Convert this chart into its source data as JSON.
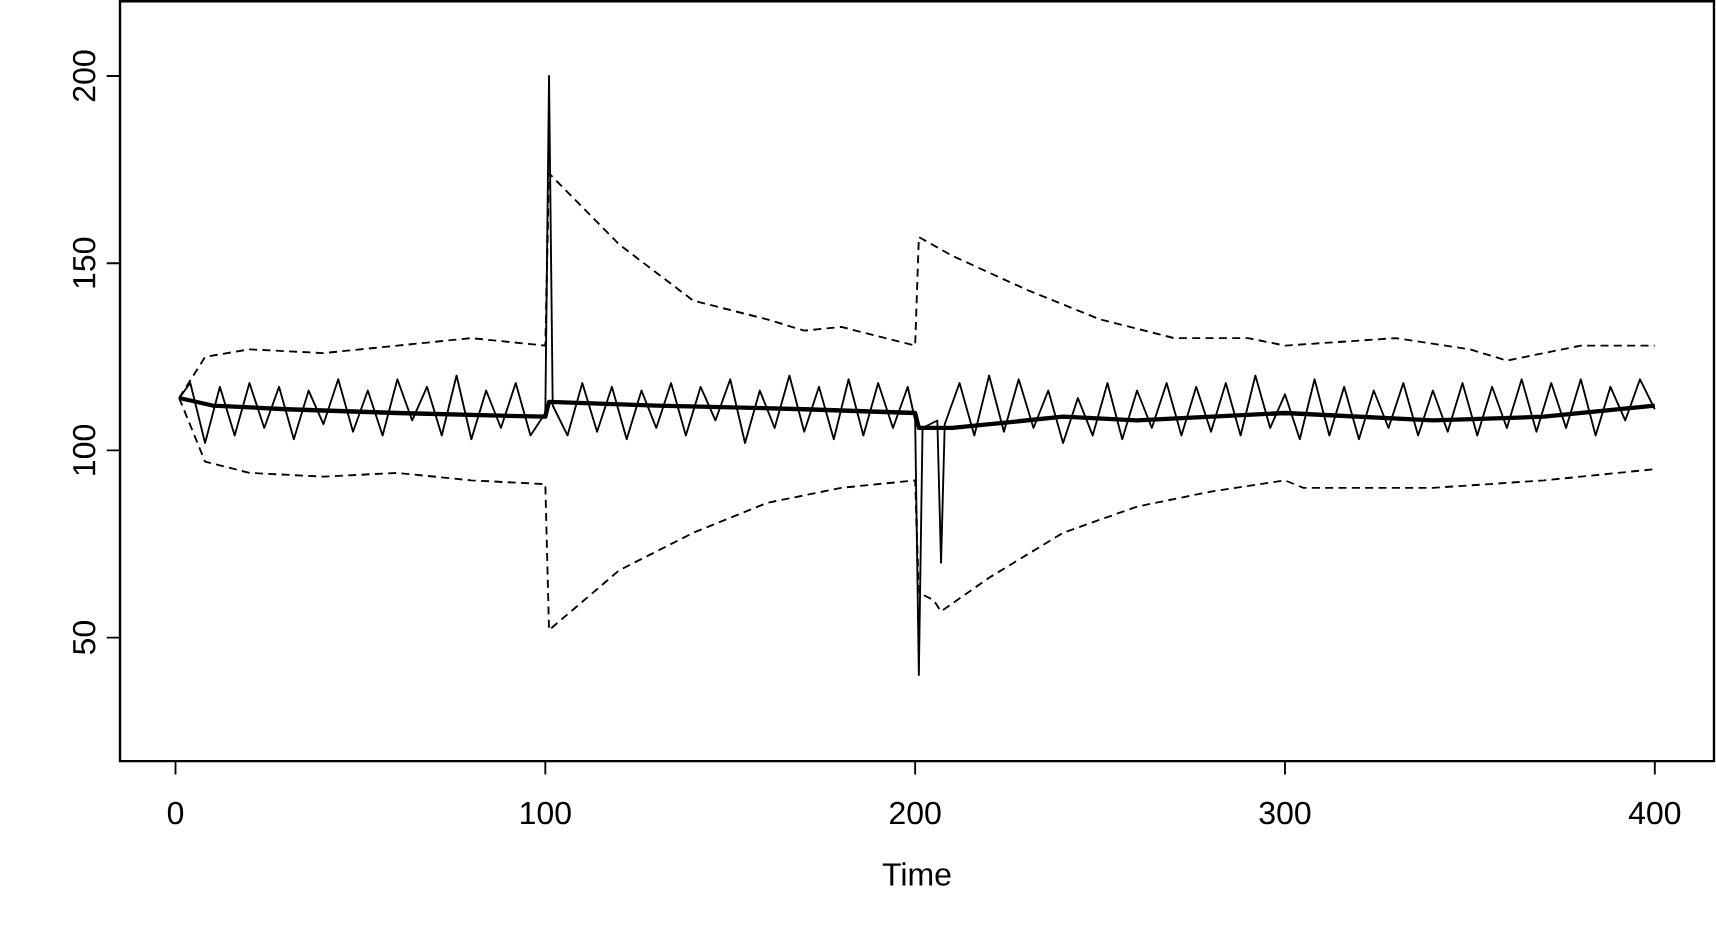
{
  "chart_data": {
    "type": "line",
    "xlabel": "Time",
    "xlim": [
      -15,
      416
    ],
    "ylim": [
      17,
      220
    ],
    "xticks": [
      0,
      100,
      200,
      300,
      400
    ],
    "yticks": [
      50,
      100,
      150,
      200
    ],
    "grid": false,
    "marker": "none",
    "series": [
      {
        "color": "#000000",
        "line_style": "solid",
        "x": [
          1,
          4,
          8,
          12,
          16,
          20,
          24,
          28,
          32,
          36,
          40,
          44,
          48,
          52,
          56,
          60,
          64,
          68,
          72,
          76,
          80,
          84,
          88,
          92,
          96,
          100,
          101,
          102,
          106,
          110,
          114,
          118,
          122,
          126,
          130,
          134,
          138,
          142,
          146,
          150,
          154,
          158,
          162,
          166,
          170,
          174,
          178,
          182,
          186,
          190,
          194,
          198,
          200,
          201,
          202,
          206,
          207,
          208,
          212,
          216,
          220,
          224,
          228,
          232,
          236,
          240,
          244,
          248,
          252,
          256,
          260,
          264,
          268,
          272,
          276,
          280,
          284,
          288,
          292,
          296,
          300,
          304,
          308,
          312,
          316,
          320,
          324,
          328,
          332,
          336,
          340,
          344,
          348,
          352,
          356,
          360,
          364,
          368,
          372,
          376,
          380,
          384,
          388,
          392,
          396,
          400
        ],
        "values": [
          114,
          118,
          102,
          117,
          104,
          118,
          106,
          117,
          103,
          116,
          107,
          119,
          105,
          116,
          104,
          119,
          108,
          117,
          104,
          120,
          103,
          116,
          106,
          118,
          104,
          110,
          200,
          112,
          104,
          118,
          105,
          117,
          103,
          116,
          106,
          118,
          104,
          117,
          108,
          119,
          102,
          116,
          106,
          120,
          105,
          117,
          103,
          119,
          104,
          118,
          106,
          117,
          108,
          40,
          106,
          108,
          70,
          107,
          118,
          104,
          120,
          105,
          119,
          106,
          116,
          102,
          114,
          104,
          118,
          103,
          116,
          106,
          118,
          104,
          117,
          105,
          118,
          104,
          120,
          106,
          115,
          103,
          119,
          104,
          117,
          103,
          116,
          106,
          118,
          104,
          116,
          105,
          118,
          104,
          117,
          106,
          119,
          105,
          118,
          106,
          119,
          104,
          117,
          108,
          119,
          111
        ]
      },
      {
        "color": "#000000",
        "line_style": "solid",
        "x": [
          1,
          10,
          30,
          60,
          100,
          101,
          130,
          170,
          200,
          201,
          210,
          240,
          260,
          300,
          340,
          370,
          400
        ],
        "values": [
          114,
          112,
          111,
          110,
          109,
          113,
          112,
          111,
          110,
          106,
          106,
          109,
          108,
          110,
          108,
          109,
          112
        ]
      },
      {
        "color": "#000000",
        "line_style": "dashed",
        "x": [
          1,
          8,
          20,
          40,
          60,
          80,
          100,
          101,
          120,
          140,
          160,
          170,
          180,
          200,
          201,
          210,
          230,
          250,
          270,
          290,
          300,
          330,
          350,
          360,
          380,
          400
        ],
        "values": [
          114,
          125,
          127,
          126,
          128,
          130,
          128,
          174,
          155,
          140,
          135,
          132,
          133,
          128,
          157,
          152,
          143,
          135,
          130,
          130,
          128,
          130,
          127,
          124,
          128,
          128
        ]
      },
      {
        "color": "#000000",
        "line_style": "dashed",
        "x": [
          1,
          8,
          20,
          40,
          60,
          80,
          100,
          101,
          120,
          140,
          160,
          180,
          200,
          201,
          205,
          207,
          220,
          240,
          260,
          280,
          300,
          305,
          340,
          370,
          400
        ],
        "values": [
          114,
          97,
          94,
          93,
          94,
          92,
          91,
          52,
          68,
          78,
          86,
          90,
          92,
          62,
          60,
          57,
          66,
          78,
          85,
          89,
          92,
          90,
          90,
          92,
          95
        ]
      }
    ]
  }
}
